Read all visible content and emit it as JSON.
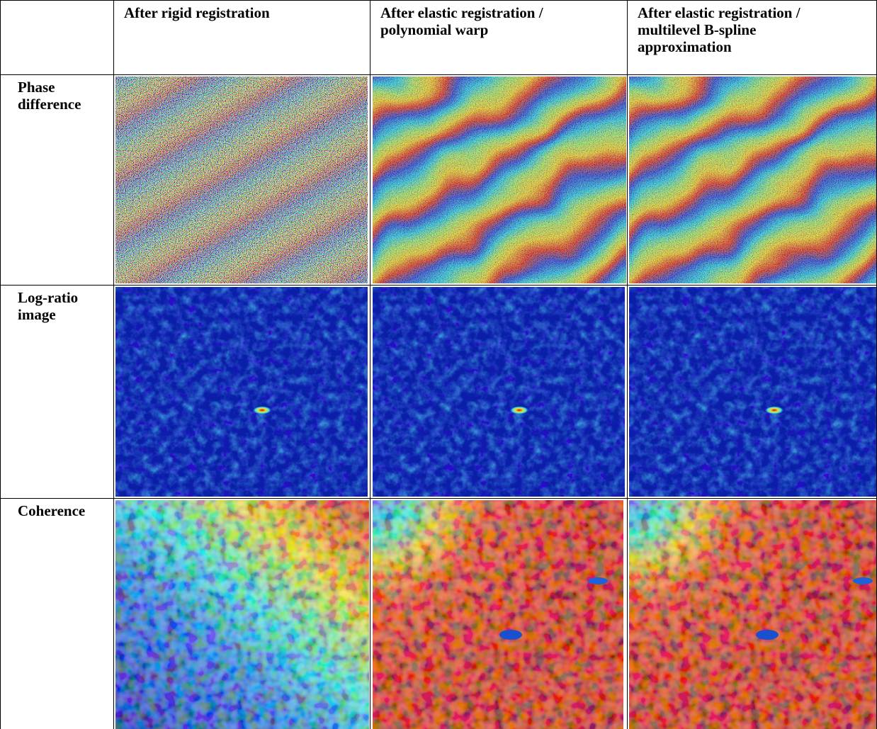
{
  "table": {
    "header": [
      "After rigid registration",
      "After elastic registration / polynomial warp",
      "After elastic registration / multilevel B-spline approximation"
    ],
    "rows": [
      "Phase difference",
      "Log-ratio image",
      "Coherence"
    ]
  }
}
